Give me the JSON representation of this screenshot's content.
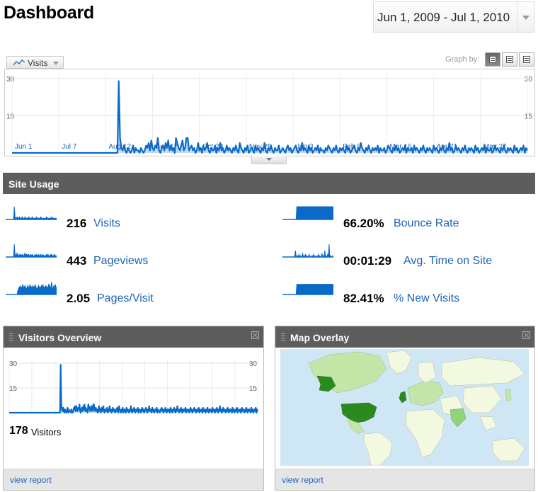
{
  "header": {
    "title": "Dashboard",
    "date_range": "Jun 1, 2009 - Jul 1, 2010"
  },
  "graph": {
    "metric_label": "Visits",
    "graph_by_label": "Graph by:",
    "graph_by_options": [
      "day",
      "week",
      "month"
    ],
    "selected_graph_by": "day",
    "line_color": "#0a6ac8"
  },
  "chart_data": [
    {
      "type": "line",
      "title": "",
      "series": [
        {
          "name": "Visits",
          "values": [
            0,
            0,
            0,
            0,
            0,
            0,
            0,
            0,
            0,
            0,
            0,
            0,
            0,
            0,
            0,
            0,
            0,
            0,
            0,
            0,
            0,
            0,
            0,
            0,
            0,
            0,
            0,
            0,
            0,
            0,
            0,
            0,
            0,
            0,
            0,
            0,
            0,
            0,
            0,
            0,
            0,
            0,
            0,
            0,
            0,
            0,
            0,
            0,
            0,
            0,
            0,
            0,
            0,
            0,
            0,
            0,
            0,
            0,
            0,
            0,
            0,
            0,
            0,
            0,
            0,
            0,
            0,
            0,
            0,
            0,
            0,
            0,
            0,
            0,
            0,
            0,
            0,
            0,
            0,
            0,
            0,
            0,
            29,
            6,
            2,
            1,
            3,
            1,
            0,
            2,
            1,
            0,
            1,
            3,
            0,
            2,
            1,
            1,
            0,
            2,
            1,
            0,
            1,
            3,
            2,
            4,
            1,
            5,
            2,
            1,
            3,
            2,
            6,
            1,
            0,
            2,
            3,
            1,
            4,
            2,
            5,
            1,
            3,
            1,
            2,
            0,
            6,
            4,
            2,
            1,
            3,
            5,
            1,
            2,
            6,
            6,
            1,
            2,
            3,
            1,
            2,
            0,
            1,
            4,
            1,
            2,
            0,
            3,
            1,
            2,
            4,
            1,
            0,
            2,
            1,
            1,
            3,
            0,
            2,
            1,
            4,
            1,
            2,
            0,
            1,
            3,
            1,
            2,
            1,
            0,
            2,
            1,
            3,
            1,
            0,
            4,
            2,
            1,
            0,
            2,
            1,
            3,
            0,
            1,
            2,
            1,
            0,
            3,
            1,
            2,
            1,
            0,
            2,
            1,
            4,
            1,
            0,
            2,
            1,
            3,
            1,
            0,
            2,
            1,
            1,
            3,
            0,
            1,
            2,
            1,
            0,
            2,
            3,
            1,
            2,
            0,
            1,
            2,
            3,
            1,
            0,
            2,
            1,
            4,
            1,
            2,
            1,
            0,
            3,
            1,
            2,
            0,
            1,
            2,
            1,
            3,
            0,
            2,
            1,
            1,
            0,
            2,
            1,
            3,
            2,
            1,
            0,
            2,
            1,
            3,
            1,
            0,
            2,
            1,
            2,
            1,
            0,
            3,
            1,
            2,
            0,
            1,
            2,
            3,
            1,
            0,
            2,
            1,
            4,
            2,
            1,
            0,
            2,
            1,
            3,
            1,
            0,
            2,
            1,
            2,
            1,
            3,
            0,
            2,
            1,
            1,
            2,
            0,
            1,
            3,
            2,
            1,
            0,
            2,
            1,
            3,
            1,
            2,
            0,
            1,
            2,
            1,
            3,
            0,
            2,
            1,
            1,
            2,
            0,
            3,
            1,
            2,
            1,
            0,
            2,
            1,
            3,
            1,
            0,
            2,
            1,
            2,
            1,
            0,
            3,
            1,
            2,
            1,
            0,
            2,
            1,
            3,
            1,
            0,
            2,
            1,
            4,
            1,
            2,
            0,
            1,
            3,
            1,
            2,
            1,
            0,
            2,
            1,
            3,
            1,
            0,
            2,
            1,
            2,
            1,
            0,
            3,
            1,
            2,
            0,
            1,
            2,
            1,
            3,
            0,
            2,
            1,
            1,
            2,
            0,
            1,
            3,
            1,
            2,
            1,
            0,
            2,
            1,
            3,
            1,
            0,
            2,
            1,
            2,
            1,
            0,
            3,
            1,
            2,
            0,
            1,
            2,
            1,
            3,
            0,
            2,
            1
          ]
        }
      ],
      "x_tick_labels": [
        "Jun 1",
        "Jul 7",
        "Aug 12",
        "Sep 17",
        "Oct 23",
        "Nov 28",
        "Jan 3",
        "Feb 8",
        "Mar 16",
        "Apr 21",
        "May 27"
      ],
      "y_tick_labels": [
        "30",
        "15"
      ],
      "ylim": [
        0,
        30
      ],
      "grid": true
    },
    {
      "type": "line",
      "title": "",
      "series": [
        {
          "name": "Visitors",
          "values": [
            0,
            0,
            0,
            0,
            0,
            0,
            0,
            0,
            0,
            0,
            0,
            0,
            0,
            0,
            0,
            0,
            0,
            0,
            0,
            0,
            0,
            0,
            0,
            0,
            0,
            0,
            0,
            0,
            0,
            0,
            0,
            0,
            0,
            0,
            0,
            0,
            0,
            0,
            0,
            0,
            0,
            0,
            0,
            0,
            0,
            0,
            0,
            0,
            0,
            0,
            0,
            0,
            0,
            0,
            0,
            0,
            0,
            0,
            0,
            0,
            0,
            0,
            0,
            0,
            0,
            0,
            0,
            0,
            0,
            0,
            0,
            0,
            0,
            0,
            0,
            0,
            0,
            0,
            0,
            0,
            0,
            0,
            29,
            5,
            2,
            1,
            3,
            1,
            0,
            2,
            1,
            0,
            1,
            3,
            0,
            2,
            1,
            1,
            0,
            2,
            1,
            0,
            1,
            3,
            2,
            4,
            1,
            4,
            2,
            1,
            3,
            2,
            5,
            1,
            0,
            2,
            3,
            1,
            4,
            2,
            5,
            1,
            3,
            1,
            2,
            0,
            5,
            4,
            2,
            1,
            3,
            4,
            1,
            2,
            5,
            5,
            1,
            2,
            3,
            1,
            2,
            0,
            1,
            4,
            1,
            2,
            0,
            3,
            1,
            2,
            4,
            1,
            0,
            2,
            1,
            1,
            3,
            0,
            2,
            1,
            4,
            1,
            2,
            0,
            1,
            3,
            1,
            2,
            1,
            0,
            2,
            1,
            3,
            1,
            0,
            4,
            2,
            1,
            0,
            2,
            1,
            3,
            0,
            1,
            2,
            1,
            0,
            3,
            1,
            2,
            1,
            0,
            2,
            1,
            4,
            1,
            0,
            2,
            1,
            3,
            1,
            0,
            2,
            1,
            1,
            3,
            0,
            1,
            2,
            1,
            0,
            2,
            3,
            1,
            2,
            0,
            1,
            2,
            3,
            1,
            0,
            2,
            1,
            4,
            1,
            2,
            1,
            0,
            3,
            1,
            2,
            0,
            1,
            2,
            1,
            3,
            0,
            2,
            1,
            1,
            0,
            2,
            1,
            3,
            2,
            1,
            0,
            2,
            1,
            3,
            1,
            0,
            2,
            1,
            2,
            1,
            0,
            3,
            1,
            2,
            0,
            1,
            2,
            3,
            1,
            0,
            2,
            1,
            4,
            2,
            1,
            0,
            2,
            1,
            3,
            1,
            0,
            2,
            1,
            2,
            1,
            3,
            0,
            2,
            1,
            1,
            2,
            0,
            1,
            3,
            2,
            1,
            0,
            2,
            1,
            3,
            1,
            2,
            0,
            1,
            2,
            1,
            3,
            0,
            2,
            1,
            1,
            2,
            0,
            3,
            1,
            2,
            1,
            0,
            2,
            1,
            3,
            1,
            0,
            2,
            1,
            2,
            1,
            0,
            3,
            1,
            2,
            1,
            0,
            2,
            1,
            3,
            1,
            0,
            2,
            1,
            4,
            1,
            2,
            0,
            1,
            3,
            1,
            2,
            1,
            0,
            2,
            1,
            3,
            1,
            0,
            2,
            1,
            2,
            1,
            0,
            3,
            1,
            2,
            0,
            1,
            2,
            1,
            3,
            0,
            2,
            1,
            1,
            2,
            0,
            1,
            3,
            1,
            2,
            1,
            0,
            2,
            1,
            3,
            1,
            0,
            2,
            1,
            2,
            1,
            0,
            3,
            1,
            2,
            0,
            1,
            2,
            1,
            3,
            0,
            2,
            1
          ]
        }
      ],
      "y_tick_labels": [
        "30",
        "15"
      ],
      "ylim": [
        0,
        30
      ],
      "grid": true
    }
  ],
  "site_usage": {
    "title": "Site Usage",
    "items": [
      {
        "value": "216",
        "label": "Visits",
        "spark": [
          0,
          0,
          0,
          0,
          0,
          0,
          0,
          0,
          0,
          0,
          0,
          0,
          10,
          2,
          1,
          1,
          2,
          1,
          1,
          2,
          1,
          1,
          1,
          2,
          1,
          1,
          1,
          2,
          1,
          1,
          1,
          1,
          2,
          1,
          1,
          1,
          1,
          2,
          1,
          1,
          1,
          1,
          1,
          2,
          1,
          1,
          1,
          1,
          1,
          2,
          1,
          1,
          1,
          1,
          1,
          1,
          1,
          2,
          1,
          1,
          1,
          1,
          1,
          1,
          2,
          1,
          1,
          1,
          1,
          1,
          1,
          1
        ]
      },
      {
        "value": "443",
        "label": "Pageviews",
        "spark": [
          0,
          0,
          0,
          0,
          0,
          0,
          0,
          0,
          0,
          0,
          0,
          0,
          10,
          2,
          1,
          2,
          3,
          1,
          1,
          2,
          1,
          2,
          1,
          2,
          1,
          1,
          2,
          3,
          1,
          2,
          1,
          2,
          2,
          1,
          1,
          2,
          1,
          2,
          1,
          1,
          1,
          2,
          1,
          2,
          1,
          1,
          2,
          1,
          1,
          2,
          1,
          1,
          2,
          1,
          1,
          1,
          1,
          2,
          1,
          2,
          1,
          1,
          1,
          2,
          2,
          1,
          1,
          1,
          2,
          1,
          1,
          1
        ]
      },
      {
        "value": "2.05",
        "label": "Pages/Visit",
        "spark": [
          0,
          0,
          0,
          0,
          0,
          0,
          0,
          0,
          0,
          0,
          0,
          0,
          0,
          0,
          0,
          0,
          0,
          3,
          5,
          6,
          4,
          7,
          5,
          6,
          8,
          5,
          6,
          7,
          5,
          4,
          6,
          7,
          5,
          6,
          8,
          5,
          6,
          5,
          7,
          6,
          5,
          8,
          6,
          5,
          4,
          6,
          7,
          5,
          6,
          5,
          7,
          6,
          8,
          5,
          6,
          5,
          7,
          6,
          5,
          6,
          8,
          7,
          5,
          6,
          10,
          5,
          4,
          7,
          5,
          8,
          6,
          5
        ]
      },
      {
        "value": "66.20%",
        "label": "Bounce Rate",
        "spark": [
          0,
          0,
          0,
          0,
          0,
          0,
          0,
          0,
          0,
          0,
          0,
          0,
          0,
          0,
          0,
          0,
          0,
          0,
          0,
          0,
          10,
          10,
          10,
          10,
          10,
          10,
          10,
          10,
          10,
          10,
          10,
          10,
          10,
          10,
          10,
          10,
          10,
          10,
          10,
          10,
          10,
          10,
          10,
          10,
          10,
          10,
          10,
          10,
          10,
          10,
          10,
          10,
          10,
          10,
          10,
          10,
          10,
          10,
          10,
          10,
          10,
          10,
          10,
          10,
          10,
          10,
          10,
          10,
          10,
          10,
          10,
          10
        ]
      },
      {
        "value": "00:01:29",
        "label": "Avg. Time on Site",
        "spark": [
          0,
          0,
          0,
          0,
          0,
          0,
          0,
          0,
          0,
          0,
          0,
          0,
          0,
          0,
          0,
          0,
          0,
          0,
          5,
          1,
          0,
          1,
          0,
          2,
          0,
          1,
          0,
          0,
          3,
          0,
          1,
          0,
          2,
          0,
          1,
          0,
          0,
          2,
          1,
          0,
          0,
          1,
          0,
          2,
          0,
          1,
          0,
          0,
          1,
          0,
          2,
          0,
          1,
          0,
          0,
          3,
          0,
          1,
          0,
          5,
          0,
          1,
          0,
          2,
          0,
          10,
          0,
          1,
          0,
          0,
          1,
          0
        ]
      },
      {
        "value": "82.41%",
        "label": "% New Visits",
        "spark": [
          0,
          0,
          0,
          0,
          0,
          0,
          0,
          0,
          0,
          0,
          0,
          0,
          0,
          0,
          0,
          0,
          0,
          0,
          0,
          0,
          8,
          8,
          8,
          8,
          8,
          8,
          8,
          8,
          8,
          8,
          8,
          8,
          8,
          8,
          8,
          8,
          8,
          8,
          8,
          8,
          8,
          8,
          8,
          8,
          8,
          8,
          8,
          8,
          8,
          8,
          8,
          8,
          8,
          8,
          8,
          8,
          8,
          8,
          8,
          8,
          8,
          8,
          8,
          8,
          8,
          8,
          8,
          8,
          8,
          8,
          8,
          8
        ]
      }
    ]
  },
  "visitors_overview": {
    "title": "Visitors Overview",
    "count": "178",
    "count_label": "Visitors",
    "footer_link": "view report"
  },
  "map_overlay": {
    "title": "Map Overlay",
    "footer_link": "view report",
    "colors": {
      "ocean": "#cfe6f4",
      "land": "#f3f8e0",
      "low": "#c3e6a8",
      "mid": "#8fd37a",
      "high": "#2a8a1e"
    }
  }
}
